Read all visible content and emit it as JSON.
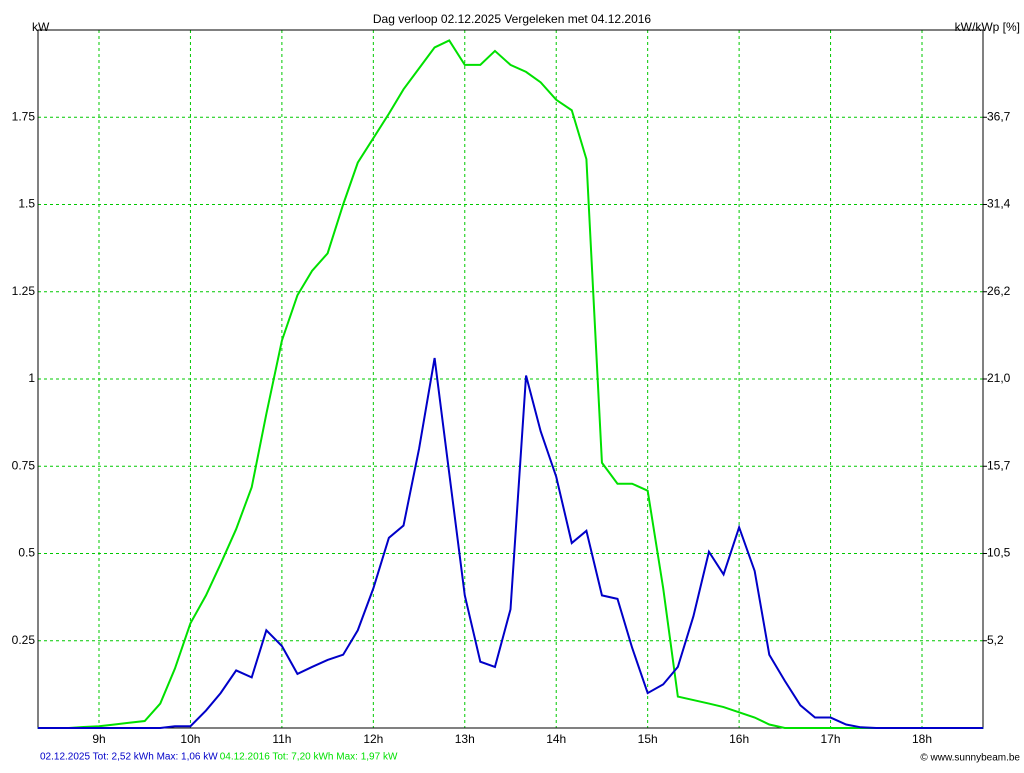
{
  "chart_data": {
    "type": "line",
    "title": "Dag  verloop 02.12.2025   Vergeleken met 04.12.2016",
    "y_label": "kW",
    "y2_label": "kW/kWp [%]",
    "credit": "© www.sunnybeam.be",
    "x": [
      8.33,
      8.5,
      8.67,
      8.83,
      9,
      9.17,
      9.33,
      9.5,
      9.67,
      9.83,
      10,
      10.17,
      10.33,
      10.5,
      10.67,
      10.83,
      11,
      11.17,
      11.33,
      11.5,
      11.67,
      11.83,
      12,
      12.17,
      12.33,
      12.5,
      12.67,
      12.83,
      13,
      13.17,
      13.33,
      13.5,
      13.67,
      13.83,
      14,
      14.17,
      14.33,
      14.5,
      14.67,
      14.83,
      15,
      15.17,
      15.33,
      15.5,
      15.67,
      15.83,
      16,
      16.17,
      16.33,
      16.5,
      16.67,
      16.83,
      17,
      17.17,
      17.33,
      17.5,
      17.67,
      17.83,
      18,
      18.17,
      18.33,
      18.5,
      18.67
    ],
    "series": [
      {
        "name": "04.12.2016 Tot: 7,20 kWh Max: 1,97 kW",
        "color": "#00e000",
        "values": [
          0,
          0,
          0,
          0.003,
          0.005,
          0.01,
          0.015,
          0.02,
          0.07,
          0.17,
          0.3,
          0.38,
          0.47,
          0.57,
          0.69,
          0.9,
          1.11,
          1.24,
          1.31,
          1.36,
          1.5,
          1.62,
          1.69,
          1.76,
          1.83,
          1.89,
          1.95,
          1.97,
          1.9,
          1.9,
          1.94,
          1.9,
          1.88,
          1.85,
          1.8,
          1.77,
          1.63,
          0.76,
          0.7,
          0.7,
          0.68,
          0.4,
          0.09,
          0.08,
          0.07,
          0.06,
          0.045,
          0.03,
          0.01,
          0,
          0,
          0,
          0,
          0,
          0,
          0,
          0,
          0,
          0,
          0,
          0,
          0,
          0
        ]
      },
      {
        "name": "02.12.2025 Tot: 2,52 kWh Max: 1,06 kW",
        "color": "#0000c8",
        "values": [
          0,
          0,
          0,
          0,
          0,
          0,
          0,
          0,
          0,
          0.005,
          0.005,
          0.05,
          0.1,
          0.165,
          0.145,
          0.28,
          0.235,
          0.155,
          0.175,
          0.195,
          0.21,
          0.28,
          0.4,
          0.545,
          0.58,
          0.8,
          1.06,
          0.73,
          0.38,
          0.19,
          0.175,
          0.34,
          1.01,
          0.85,
          0.72,
          0.53,
          0.565,
          0.38,
          0.37,
          0.23,
          0.1,
          0.125,
          0.175,
          0.32,
          0.505,
          0.44,
          0.575,
          0.45,
          0.21,
          0.135,
          0.065,
          0.03,
          0.03,
          0.01,
          0.002,
          0,
          0,
          0,
          0,
          0,
          0,
          0,
          0
        ]
      }
    ],
    "legend_order": [
      1,
      0
    ],
    "xlim": [
      8.333,
      18.667
    ],
    "xticks": [
      {
        "value": 9,
        "label": "9h"
      },
      {
        "value": 10,
        "label": "10h"
      },
      {
        "value": 11,
        "label": "11h"
      },
      {
        "value": 12,
        "label": "12h"
      },
      {
        "value": 13,
        "label": "13h"
      },
      {
        "value": 14,
        "label": "14h"
      },
      {
        "value": 15,
        "label": "15h"
      },
      {
        "value": 16,
        "label": "16h"
      },
      {
        "value": 17,
        "label": "17h"
      },
      {
        "value": 18,
        "label": "18h"
      }
    ],
    "ylim": [
      0,
      2
    ],
    "yticks": [
      0.25,
      0.5,
      0.75,
      1,
      1.25,
      1.5,
      1.75
    ],
    "y2lim": [
      0,
      41.92
    ],
    "y2ticks": [
      {
        "value": 5.24,
        "label": "5,2"
      },
      {
        "value": 10.48,
        "label": "10,5"
      },
      {
        "value": 15.72,
        "label": "15,7"
      },
      {
        "value": 20.96,
        "label": "21,0"
      },
      {
        "value": 26.2,
        "label": "26,2"
      },
      {
        "value": 31.44,
        "label": "31,4"
      },
      {
        "value": 36.68,
        "label": "36,7"
      }
    ],
    "grid": true
  }
}
